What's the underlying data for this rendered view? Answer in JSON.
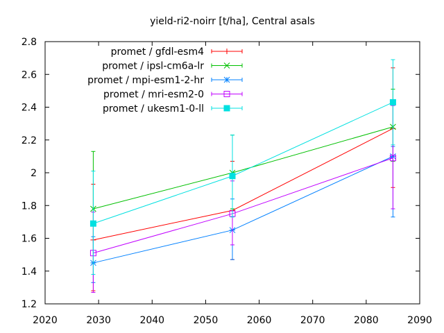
{
  "chart_data": {
    "type": "line",
    "title": "yield-ri2-noirr [t/ha], Central asals",
    "xlabel": "",
    "ylabel": "",
    "xlim": [
      2020,
      2090
    ],
    "ylim": [
      1.2,
      2.8
    ],
    "xticks": [
      2020,
      2030,
      2040,
      2050,
      2060,
      2070,
      2080,
      2090
    ],
    "yticks": [
      1.2,
      1.4,
      1.6,
      1.8,
      2,
      2.2,
      2.4,
      2.6,
      2.8
    ],
    "xtick_labels": [
      "2020",
      "2030",
      "2040",
      "2050",
      "2060",
      "2070",
      "2080",
      "2090"
    ],
    "ytick_labels": [
      "1.2",
      "1.4",
      "1.6",
      "1.8",
      "2",
      "2.2",
      "2.4",
      "2.6",
      "2.8"
    ],
    "grid": false,
    "legend_position": "top-left",
    "x": [
      2029,
      2055,
      2085
    ],
    "series": [
      {
        "name": "promet / gfdl-esm4",
        "color": "#ff0000",
        "marker": "plus",
        "values": [
          1.59,
          1.77,
          2.27
        ],
        "err_low": [
          1.28,
          1.47,
          1.91
        ],
        "err_high": [
          1.93,
          2.07,
          2.64
        ]
      },
      {
        "name": "promet / ipsl-cm6a-lr",
        "color": "#00c000",
        "marker": "cross",
        "values": [
          1.78,
          2.0,
          2.28
        ],
        "err_low": [
          1.45,
          1.78,
          2.07
        ],
        "err_high": [
          2.13,
          2.23,
          2.51
        ]
      },
      {
        "name": "promet / mpi-esm1-2-hr",
        "color": "#0080ff",
        "marker": "star",
        "values": [
          1.45,
          1.65,
          2.1
        ],
        "err_low": [
          1.33,
          1.47,
          1.73
        ],
        "err_high": [
          1.61,
          1.84,
          2.16
        ]
      },
      {
        "name": "promet / mri-esm2-0",
        "color": "#c000ff",
        "marker": "square",
        "values": [
          1.51,
          1.75,
          2.09
        ],
        "err_low": [
          1.27,
          1.56,
          1.78
        ],
        "err_high": [
          1.76,
          1.95,
          2.41
        ]
      },
      {
        "name": "promet / ukesm1-0-ll",
        "color": "#00e0e0",
        "marker": "filled-square",
        "values": [
          1.69,
          1.98,
          2.43
        ],
        "err_low": [
          1.38,
          1.73,
          2.17
        ],
        "err_high": [
          2.01,
          2.23,
          2.69
        ]
      }
    ]
  }
}
